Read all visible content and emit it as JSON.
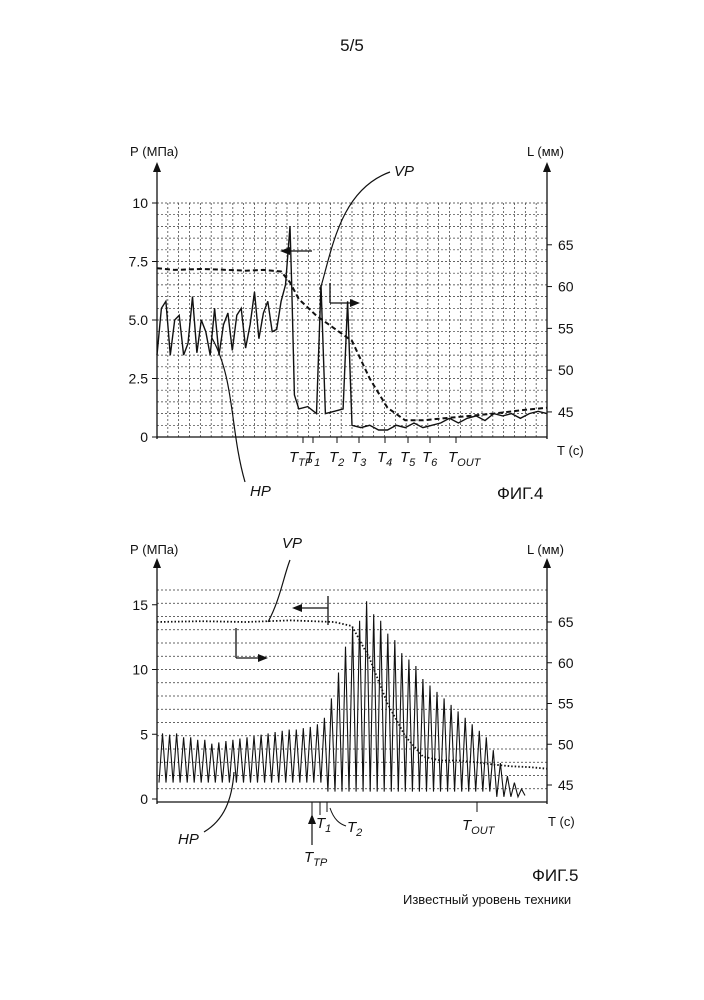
{
  "page": {
    "number": "5/5",
    "note": "Известный уровень техники"
  },
  "chart_data": [
    {
      "figure": "ФИГ.4",
      "type": "line",
      "y_label_left": "Р (МПа)",
      "y_label_right": "L (мм)",
      "x_label": "Т (с)",
      "ylim_left": [
        0,
        10
      ],
      "ylim_right": [
        42,
        70
      ],
      "y_ticks_left": [
        "0",
        "2.5",
        "5.0",
        "7.5",
        "10"
      ],
      "y_ticks_right": [
        "45",
        "50",
        "55",
        "60",
        "65"
      ],
      "time_marks": [
        "TTP",
        "T1",
        "T2",
        "T3",
        "T4",
        "T5",
        "T6",
        "TOUT"
      ],
      "time_mark_labels": [
        {
          "main": "T",
          "sub": "TP"
        },
        {
          "main": "T",
          "sub": "1"
        },
        {
          "main": "T",
          "sub": "2"
        },
        {
          "main": "T",
          "sub": "3"
        },
        {
          "main": "T",
          "sub": "4"
        },
        {
          "main": "T",
          "sub": "5"
        },
        {
          "main": "T",
          "sub": "6"
        },
        {
          "main": "T",
          "sub": "OUT"
        }
      ],
      "series": [
        {
          "name": "VP",
          "axis": "right",
          "style": "dashed",
          "x": [
            0,
            2,
            5,
            8,
            10,
            12,
            14,
            15,
            16,
            18,
            20,
            22,
            24,
            26,
            28,
            30,
            32,
            35,
            38,
            41,
            44
          ],
          "values": [
            62.2,
            62.0,
            62.1,
            62.0,
            61.9,
            62.0,
            61.8,
            60.5,
            58.5,
            56.5,
            55.0,
            53.5,
            49.0,
            45.5,
            44.0,
            44.0,
            44.2,
            44.5,
            44.8,
            45.2,
            45.5
          ]
        },
        {
          "name": "HP",
          "axis": "left",
          "style": "solid",
          "x": [
            0,
            0.5,
            1,
            1.5,
            2,
            2.5,
            3,
            3.5,
            4,
            4.5,
            5,
            5.5,
            6,
            6.5,
            7,
            7.5,
            8,
            8.5,
            9,
            9.5,
            10,
            10.5,
            11,
            11.5,
            12,
            12.5,
            13,
            13.5,
            14,
            14.5,
            15,
            15.2,
            15.5,
            16,
            17,
            18,
            18.5,
            19,
            20,
            21,
            21.5,
            22,
            23,
            24,
            25,
            26,
            27,
            28,
            29,
            30,
            31,
            32,
            33,
            34,
            35,
            36,
            37,
            38,
            39,
            40,
            41,
            42,
            43,
            44
          ],
          "values": [
            3.5,
            5.5,
            5.8,
            3.5,
            5.0,
            5.2,
            3.5,
            4.0,
            6.0,
            3.6,
            5.0,
            4.5,
            3.5,
            5.5,
            3.5,
            4.8,
            5.3,
            3.7,
            5.2,
            5.5,
            3.8,
            4.8,
            6.2,
            4.2,
            5.3,
            5.8,
            4.5,
            4.6,
            5.8,
            6.5,
            9.0,
            6.5,
            1.8,
            1.2,
            1.3,
            1.0,
            6.5,
            1.0,
            1.1,
            1.2,
            5.8,
            0.5,
            0.4,
            0.5,
            0.3,
            0.3,
            0.5,
            0.4,
            0.6,
            0.4,
            0.5,
            0.6,
            0.8,
            0.6,
            0.8,
            0.9,
            0.7,
            1.0,
            0.9,
            1.0,
            0.8,
            1.0,
            1.1,
            1.0
          ]
        }
      ],
      "annotations": [
        "VP",
        "HP"
      ]
    },
    {
      "figure": "ФИГ.5",
      "type": "line",
      "y_label_left": "Р (МПа)",
      "y_label_right": "L (мм)",
      "x_label": "Т (с)",
      "ylim_left": [
        0,
        17
      ],
      "ylim_right": [
        42,
        70
      ],
      "y_ticks_left": [
        "0",
        "5",
        "10",
        "15"
      ],
      "y_ticks_right": [
        "45",
        "50",
        "55",
        "60",
        "65"
      ],
      "time_marks": [
        "TTP",
        "T1",
        "T2",
        "TOUT"
      ],
      "time_mark_labels": [
        {
          "main": "T",
          "sub": "TP"
        },
        {
          "main": "T",
          "sub": "1"
        },
        {
          "main": "T",
          "sub": "2"
        },
        {
          "main": "T",
          "sub": "OUT"
        }
      ],
      "series": [
        {
          "name": "VP",
          "axis": "right",
          "style": "dotted",
          "x": [
            0,
            5,
            10,
            15,
            20,
            22,
            24,
            26,
            28,
            30,
            32,
            34,
            36,
            38,
            40,
            42,
            44
          ],
          "values": [
            65.0,
            65.1,
            65.0,
            65.2,
            65.0,
            64.5,
            60.5,
            55.0,
            51.0,
            48.5,
            48.0,
            48.0,
            47.8,
            47.5,
            47.3,
            47.2,
            47.0
          ]
        },
        {
          "name": "HP",
          "axis": "left",
          "style": "solid",
          "oscillation_peaks": [
            5.3,
            5.2,
            5.3,
            5.0,
            5.0,
            4.8,
            4.8,
            4.5,
            4.6,
            4.7,
            4.8,
            4.9,
            5.0,
            5.1,
            5.2,
            5.3,
            5.4,
            5.5,
            5.6,
            5.6,
            5.7,
            5.8,
            6.0,
            6.5,
            8.0,
            10.0,
            12.0,
            13.5,
            14.0,
            15.5,
            14.5,
            14.0,
            13.0,
            12.5,
            11.5,
            11.0,
            10.5,
            9.5,
            9.0,
            8.5,
            8.0,
            7.5,
            7.0,
            6.5,
            6.0,
            5.5,
            5.0,
            4.0,
            3.0,
            2.0,
            1.5,
            1.0
          ],
          "baseline_min": 0.5
        }
      ],
      "annotations": [
        "VP",
        "HP"
      ]
    }
  ]
}
